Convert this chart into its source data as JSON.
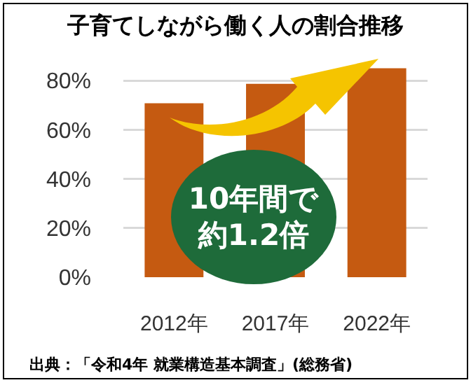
{
  "chart_data": {
    "type": "bar",
    "title": "子育てしながら働く人の割合推移",
    "categories": [
      "2012年",
      "2017年",
      "2022年"
    ],
    "values": [
      70.8,
      78.7,
      85.0
    ],
    "color": "#c55a11",
    "ylim": [
      0,
      86
    ],
    "yticks": [
      {
        "value": 0,
        "label": "0%"
      },
      {
        "value": 20,
        "label": "20%"
      },
      {
        "value": 40,
        "label": "40%"
      },
      {
        "value": 60,
        "label": "60%"
      },
      {
        "value": 80,
        "label": "80%"
      }
    ],
    "grid": "y",
    "annotations": [
      "10年間で",
      "約1.2倍",
      "出典：「令和4年 就業構造基本調査」(総務省)"
    ]
  }
}
